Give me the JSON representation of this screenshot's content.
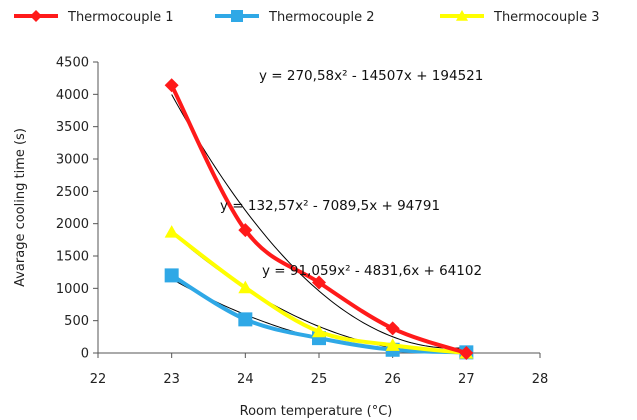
{
  "chart_data": {
    "type": "line",
    "xlabel": "Room temperature  (°C)",
    "ylabel": "Avarage cooling time  (s)",
    "xlim": [
      22,
      28
    ],
    "ylim": [
      0,
      4500
    ],
    "x_ticks": [
      "22",
      "23",
      "24",
      "25",
      "26",
      "27",
      "28"
    ],
    "y_ticks": [
      "0",
      "500",
      "1000",
      "1500",
      "2000",
      "2500",
      "3000",
      "3500",
      "4000",
      "4500"
    ],
    "legend_position": "top",
    "grid": false,
    "x": [
      23,
      24,
      25,
      26,
      27
    ],
    "series": [
      {
        "name": "Thermocouple 1",
        "color": "#ff1a1a",
        "marker": "diamond",
        "values": [
          4140,
          1900,
          1090,
          380,
          0
        ]
      },
      {
        "name": "Thermocouple 2",
        "color": "#2fa8e6",
        "marker": "square",
        "values": [
          1200,
          520,
          230,
          50,
          10
        ]
      },
      {
        "name": "Thermocouple 3",
        "color": "#ffff00",
        "marker": "triangle",
        "values": [
          1870,
          1010,
          330,
          120,
          0
        ]
      }
    ],
    "trendlines": [
      {
        "equation": "y = 270,58x² - 14507x + 194521",
        "coefficients": [
          270.58,
          -14507,
          194521
        ]
      },
      {
        "equation": "y = 132,57x² - 7089,5x + 94791",
        "coefficients": [
          132.57,
          -7089.5,
          94791
        ]
      },
      {
        "equation": "y = 91,059x² - 4831,6x + 64102",
        "coefficients": [
          91.059,
          -4831.6,
          64102
        ]
      }
    ],
    "trendline_color": "#000000"
  }
}
